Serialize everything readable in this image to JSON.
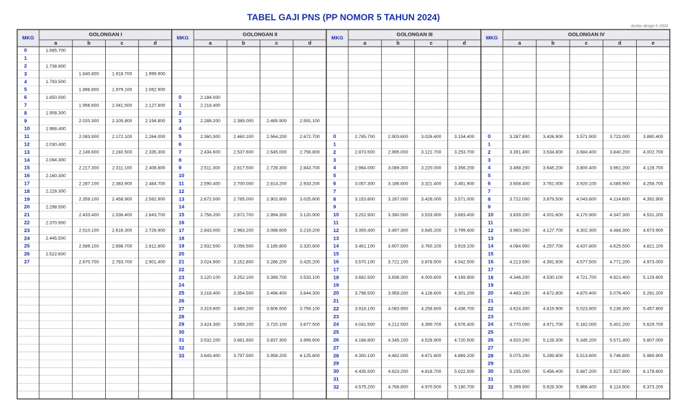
{
  "header": {
    "title": "TABEL GAJI PNS (PP NOMOR 5 TAHUN 2024)",
    "credit": "doritas design © 2024"
  },
  "groups": [
    {
      "mkg_label": "MKG",
      "name": "GOLONGAN I",
      "columns": [
        "a",
        "b",
        "c",
        "d"
      ],
      "rows": [
        {
          "mkg": "0",
          "a": "1.685.700"
        },
        {
          "mkg": "1"
        },
        {
          "mkg": "2",
          "a": "1.738.800"
        },
        {
          "mkg": "3",
          "b": "1.840.800",
          "c": "1.918.700",
          "d": "1.999.900"
        },
        {
          "mkg": "4",
          "a": "1.793.500"
        },
        {
          "mkg": "5",
          "b": "1.898.800",
          "c": "1.979.100",
          "d": "2.062.900"
        },
        {
          "mkg": "6",
          "a": "1.850.000"
        },
        {
          "mkg": "7",
          "b": "1.956.600",
          "c": "2.041.500",
          "d": "2.127.800"
        },
        {
          "mkg": "8",
          "a": "1.908.300"
        },
        {
          "mkg": "9",
          "b": "2.020.300",
          "c": "2.105.800",
          "d": "2.194.800"
        },
        {
          "mkg": "10",
          "a": "1.968.400"
        },
        {
          "mkg": "11",
          "b": "2.083.900",
          "c": "2.172.100",
          "d": "2.264.000"
        },
        {
          "mkg": "12",
          "a": "2.030.400"
        },
        {
          "mkg": "13",
          "b": "2.149.600",
          "c": "2.240.500",
          "d": "2.335.300"
        },
        {
          "mkg": "14",
          "a": "2.094.300"
        },
        {
          "mkg": "15",
          "b": "2.217.300",
          "c": "2.311.100",
          "d": "2.408.800"
        },
        {
          "mkg": "16",
          "a": "2.160.300"
        },
        {
          "mkg": "17",
          "b": "2.287.100",
          "c": "2.383.900",
          "d": "2.484.700"
        },
        {
          "mkg": "18",
          "a": "2.228.300"
        },
        {
          "mkg": "19",
          "b": "2.359.100",
          "c": "2.458.900",
          "d": "2.562.900"
        },
        {
          "mkg": "20",
          "a": "2.298.500"
        },
        {
          "mkg": "21",
          "b": "2.433.400",
          "c": "2.536.400",
          "d": "2.643.700"
        },
        {
          "mkg": "22",
          "a": "2.370.900"
        },
        {
          "mkg": "23",
          "b": "2.510.100",
          "c": "2.616.300",
          "d": "2.726.900"
        },
        {
          "mkg": "24",
          "a": "2.445.500"
        },
        {
          "mkg": "25",
          "b": "2.589.100",
          "c": "2.698.700",
          "d": "2.812.800"
        },
        {
          "mkg": "26",
          "a": "2.522.600"
        },
        {
          "mkg": "27",
          "b": "2.670.700",
          "c": "2.783.700",
          "d": "2.901.400"
        }
      ]
    },
    {
      "mkg_label": "MKG",
      "name": "GOLONGAN II",
      "columns": [
        "a",
        "b",
        "c",
        "d"
      ],
      "rows": [
        {
          "mkg": "0",
          "a": "2.184.000"
        },
        {
          "mkg": "1",
          "a": "2.218.400"
        },
        {
          "mkg": "2"
        },
        {
          "mkg": "3",
          "a": "2.288.200",
          "b": "2.385.000",
          "c": "2.485.900",
          "d": "2.591.100"
        },
        {
          "mkg": "4"
        },
        {
          "mkg": "5",
          "a": "2.360.300",
          "b": "2.460.100",
          "c": "2.564.200",
          "d": "2.672.700"
        },
        {
          "mkg": "6"
        },
        {
          "mkg": "7",
          "a": "2.434.600",
          "b": "2.537.600",
          "c": "2.645.000",
          "d": "2.756.800"
        },
        {
          "mkg": "8"
        },
        {
          "mkg": "9",
          "a": "2.511.300",
          "b": "2.617.500",
          "c": "2.728.300",
          "d": "2.843.700"
        },
        {
          "mkg": "10"
        },
        {
          "mkg": "11",
          "a": "2.590.400",
          "b": "2.700.000",
          "c": "2.814.200",
          "d": "2.933.200"
        },
        {
          "mkg": "12"
        },
        {
          "mkg": "13",
          "a": "2.672.000",
          "b": "2.785.000",
          "c": "2.902.800",
          "d": "3.025.600"
        },
        {
          "mkg": "14"
        },
        {
          "mkg": "15",
          "a": "2.756.200",
          "b": "2.872.700",
          "c": "2.994.300",
          "d": "3.120.900"
        },
        {
          "mkg": "16"
        },
        {
          "mkg": "17",
          "a": "2.843.000",
          "b": "2.963.200",
          "c": "3.088.600",
          "d": "3.219.200"
        },
        {
          "mkg": "18"
        },
        {
          "mkg": "19",
          "a": "2.932.500",
          "b": "3.056.500",
          "c": "3.185.800",
          "d": "3.320.600"
        },
        {
          "mkg": "20"
        },
        {
          "mkg": "21",
          "a": "3.024.900",
          "b": "3.152.800",
          "c": "3.286.200",
          "d": "3.425.200"
        },
        {
          "mkg": "22"
        },
        {
          "mkg": "23",
          "a": "3.120.100",
          "b": "3.252.100",
          "c": "3.389.700",
          "d": "3.533.100"
        },
        {
          "mkg": "24"
        },
        {
          "mkg": "25",
          "a": "3.218.400",
          "b": "3.354.500",
          "c": "3.496.400",
          "d": "3.644.300"
        },
        {
          "mkg": "26"
        },
        {
          "mkg": "27",
          "a": "3.319.800",
          "b": "3.460.200",
          "c": "3.606.500",
          "d": "3.759.100"
        },
        {
          "mkg": "28"
        },
        {
          "mkg": "29",
          "a": "3.424.300",
          "b": "3.569.200",
          "c": "3.720.100",
          "d": "3.877.500"
        },
        {
          "mkg": "30"
        },
        {
          "mkg": "31",
          "a": "3.532.200",
          "b": "3.681.600",
          "c": "3.837.300",
          "d": "3.999.600"
        },
        {
          "mkg": "32"
        },
        {
          "mkg": "33",
          "a": "3.643.400",
          "b": "3.797.500",
          "c": "3.958.200",
          "d": "4.125.600"
        }
      ]
    },
    {
      "mkg_label": "MKG",
      "name": "GOLONGAN III",
      "columns": [
        "a",
        "b",
        "c",
        "d"
      ],
      "rows": [
        {
          "mkg": "0",
          "a": "2.785.700",
          "b": "2.903.600",
          "c": "3.026.400",
          "d": "3.154.400"
        },
        {
          "mkg": "1"
        },
        {
          "mkg": "2",
          "a": "2.873.500",
          "b": "2.995.000",
          "c": "3.121.700",
          "d": "3.253.700"
        },
        {
          "mkg": "3"
        },
        {
          "mkg": "4",
          "a": "2.964.000",
          "b": "3.089.300",
          "c": "3.220.000",
          "d": "3.356.200"
        },
        {
          "mkg": "5"
        },
        {
          "mkg": "6",
          "a": "3.057.300",
          "b": "3.186.600",
          "c": "3.321.400",
          "d": "3.461.900"
        },
        {
          "mkg": "7"
        },
        {
          "mkg": "8",
          "a": "3.153.600",
          "b": "3.287.000",
          "c": "3.426.000",
          "d": "3.571.000"
        },
        {
          "mkg": "9"
        },
        {
          "mkg": "10",
          "a": "3.252.900",
          "b": "3.390.500",
          "c": "3.533.900",
          "d": "3.683.400"
        },
        {
          "mkg": "11"
        },
        {
          "mkg": "12",
          "a": "3.355.400",
          "b": "3.497.300",
          "c": "3.645.200",
          "d": "3.799.400"
        },
        {
          "mkg": "13"
        },
        {
          "mkg": "14",
          "a": "3.461.100",
          "b": "3.607.500",
          "c": "3.760.100",
          "d": "3.919.100"
        },
        {
          "mkg": "15"
        },
        {
          "mkg": "16",
          "a": "3.570.100",
          "b": "3.721.100",
          "c": "3.878.500",
          "d": "4.042.500"
        },
        {
          "mkg": "17"
        },
        {
          "mkg": "18",
          "a": "3.682.500",
          "b": "3.838.300",
          "c": "4.000.600",
          "d": "4.169.900"
        },
        {
          "mkg": "19"
        },
        {
          "mkg": "20",
          "a": "3.798.500",
          "b": "3.959.200",
          "c": "4.126.600",
          "d": "4.301.200"
        },
        {
          "mkg": "21"
        },
        {
          "mkg": "22",
          "a": "3.918.100",
          "b": "4.083.900",
          "c": "4.256.600",
          "d": "4.436.700"
        },
        {
          "mkg": "23"
        },
        {
          "mkg": "24",
          "a": "4.041.500",
          "b": "4.212.500",
          "c": "4.390.700",
          "d": "4.576.400"
        },
        {
          "mkg": "25"
        },
        {
          "mkg": "26",
          "a": "4.168.800",
          "b": "4.345.100",
          "c": "4.528.900",
          "d": "4.720.500"
        },
        {
          "mkg": "27"
        },
        {
          "mkg": "28",
          "a": "4.300.100",
          "b": "4.482.000",
          "c": "4.671.600",
          "d": "4.869.200"
        },
        {
          "mkg": "29"
        },
        {
          "mkg": "30",
          "a": "4.435.500",
          "b": "4.623.200",
          "c": "4.818.700",
          "d": "5.022.500"
        },
        {
          "mkg": "31"
        },
        {
          "mkg": "32",
          "a": "4.575.200",
          "b": "4.768.800",
          "c": "4.970.500",
          "d": "5.180.700"
        }
      ]
    },
    {
      "mkg_label": "MKG",
      "name": "GOLONGAN IV",
      "columns": [
        "a",
        "b",
        "c",
        "d",
        "e"
      ],
      "rows": [
        {
          "mkg": "0",
          "a": "3.287.800",
          "b": "3.426.900",
          "c": "3.571.900",
          "d": "3.723.000",
          "e": "3.880.400"
        },
        {
          "mkg": "1"
        },
        {
          "mkg": "2",
          "a": "3.391.400",
          "b": "3.534.800",
          "c": "3.684.400",
          "d": "3.840.200",
          "e": "4.002.700"
        },
        {
          "mkg": "3"
        },
        {
          "mkg": "4",
          "a": "3.498.200",
          "b": "3.646.200",
          "c": "3.800.400",
          "d": "3.961.200",
          "e": "4.128.700"
        },
        {
          "mkg": "5"
        },
        {
          "mkg": "6",
          "a": "3.608.400",
          "b": "3.761.000",
          "c": "3.920.100",
          "d": "4.085.900",
          "e": "4.258.700"
        },
        {
          "mkg": "7"
        },
        {
          "mkg": "8",
          "a": "3.722.000",
          "b": "3.879.500",
          "c": "4.043.600",
          "d": "4.214.600",
          "e": "4.392.900"
        },
        {
          "mkg": "9"
        },
        {
          "mkg": "10",
          "a": "3.839.200",
          "b": "4.001.600",
          "c": "4.170.900",
          "d": "4.347.300",
          "e": "4.531.200"
        },
        {
          "mkg": "11"
        },
        {
          "mkg": "12",
          "a": "3.960.200",
          "b": "4.127.700",
          "c": "4.302.300",
          "d": "4.484.300",
          "e": "4.673.900"
        },
        {
          "mkg": "13"
        },
        {
          "mkg": "14",
          "a": "4.084.900",
          "b": "4.257.700",
          "c": "4.437.800",
          "d": "4.625.500",
          "e": "4.821.100"
        },
        {
          "mkg": "15"
        },
        {
          "mkg": "16",
          "a": "4.213.500",
          "b": "4.391.600",
          "c": "4.577.500",
          "d": "4.771.200",
          "e": "4.973.000"
        },
        {
          "mkg": "17"
        },
        {
          "mkg": "18",
          "a": "4.346.200",
          "b": "4.530.100",
          "c": "4.721.700",
          "d": "4.921.400",
          "e": "5.129.600"
        },
        {
          "mkg": "19"
        },
        {
          "mkg": "20",
          "a": "4.483.100",
          "b": "4.672.800",
          "c": "4.870.400",
          "d": "5.076.400",
          "e": "5.291.200"
        },
        {
          "mkg": "21"
        },
        {
          "mkg": "22",
          "a": "4.624.300",
          "b": "4.819.900",
          "c": "5.023.800",
          "d": "5.236.300",
          "e": "5.457.800"
        },
        {
          "mkg": "23"
        },
        {
          "mkg": "24",
          "a": "4.770.000",
          "b": "4.971.700",
          "c": "5.182.000",
          "d": "5.401.200",
          "e": "5.629.700"
        },
        {
          "mkg": "25"
        },
        {
          "mkg": "26",
          "a": "4.920.200",
          "b": "5.128.300",
          "c": "5.345.200",
          "d": "5.571.400",
          "e": "5.807.000"
        },
        {
          "mkg": "27"
        },
        {
          "mkg": "28",
          "a": "5.075.200",
          "b": "5.289.800",
          "c": "5.513.600",
          "d": "5.746.800",
          "e": "5.989.900"
        },
        {
          "mkg": "29"
        },
        {
          "mkg": "30",
          "a": "5.235.000",
          "b": "5.456.400",
          "c": "5.687.200",
          "d": "5.927.800",
          "e": "6.178.600"
        },
        {
          "mkg": "31"
        },
        {
          "mkg": "32",
          "a": "5.399.900",
          "b": "5.628.300",
          "c": "5.866.400",
          "d": "6.114.500",
          "e": "6.373.200"
        }
      ]
    }
  ]
}
